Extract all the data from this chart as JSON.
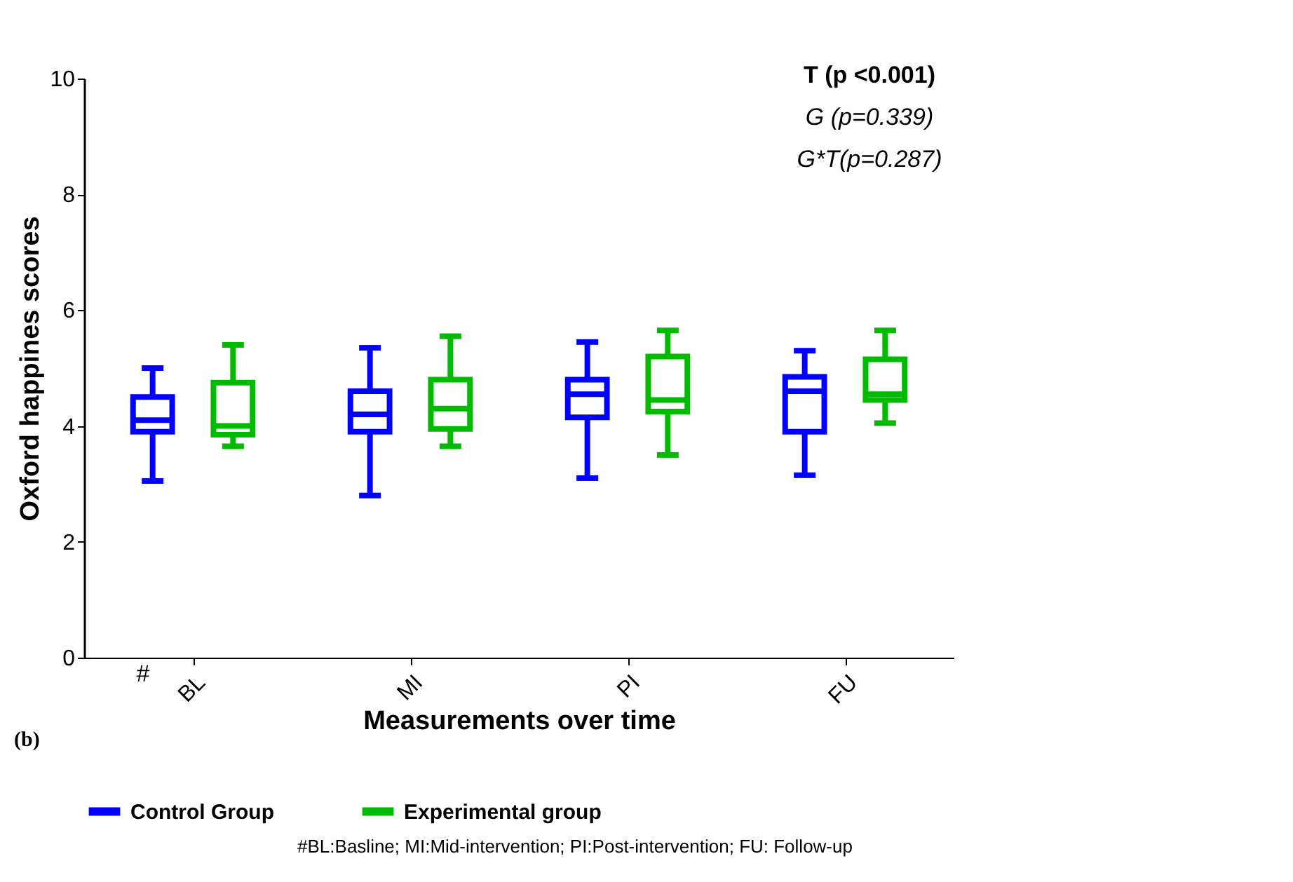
{
  "chart_data": {
    "type": "box",
    "categories": [
      "BL",
      "MI",
      "PI",
      "FU"
    ],
    "xlabel": "Measurements over time",
    "ylabel": "Oxford happines scores",
    "ylim": [
      0,
      10
    ],
    "yticks": [
      0,
      2,
      4,
      6,
      8,
      10
    ],
    "grid": false,
    "legend": "bottom",
    "series": [
      {
        "name": "Control Group",
        "color": "#0000ff",
        "boxes": [
          {
            "low": 3.05,
            "q1": 3.9,
            "median": 4.1,
            "q3": 4.5,
            "high": 5.0
          },
          {
            "low": 2.8,
            "q1": 3.9,
            "median": 4.2,
            "q3": 4.6,
            "high": 5.35
          },
          {
            "low": 3.1,
            "q1": 4.15,
            "median": 4.55,
            "q3": 4.8,
            "high": 5.45
          },
          {
            "low": 3.15,
            "q1": 3.9,
            "median": 4.6,
            "q3": 4.85,
            "high": 5.3
          }
        ]
      },
      {
        "name": "Experimental group",
        "color": "#00bb00",
        "boxes": [
          {
            "low": 3.65,
            "q1": 3.85,
            "median": 4.0,
            "q3": 4.75,
            "high": 5.4
          },
          {
            "low": 3.65,
            "q1": 3.95,
            "median": 4.3,
            "q3": 4.8,
            "high": 5.55
          },
          {
            "low": 3.5,
            "q1": 4.25,
            "median": 4.45,
            "q3": 5.2,
            "high": 5.65
          },
          {
            "low": 4.05,
            "q1": 4.45,
            "median": 4.55,
            "q3": 5.15,
            "high": 5.65
          }
        ]
      }
    ],
    "annotations": [
      "T (p <0.001)",
      "G (p=0.339)",
      "G*T(p=0.287)",
      "#",
      "(b)",
      "#BL:Basline; MI:Mid-intervention; PI:Post-intervention; FU: Follow-up"
    ]
  }
}
